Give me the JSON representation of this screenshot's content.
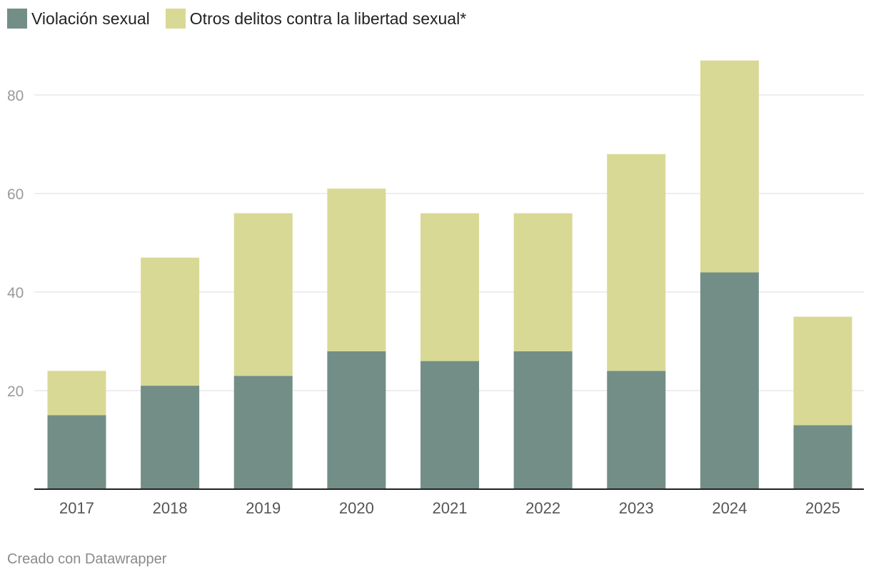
{
  "chart_data": {
    "type": "bar",
    "stacked": true,
    "categories": [
      "2017",
      "2018",
      "2019",
      "2020",
      "2021",
      "2022",
      "2023",
      "2024",
      "2025"
    ],
    "series": [
      {
        "name": "Violación sexual",
        "color": "#728e87",
        "values": [
          15,
          21,
          23,
          28,
          26,
          28,
          24,
          44,
          13
        ]
      },
      {
        "name": "Otros delitos contra la libertad sexual*",
        "color": "#d9d996",
        "values": [
          9,
          26,
          33,
          33,
          30,
          28,
          44,
          43,
          22
        ]
      }
    ],
    "ylim": [
      0,
      80
    ],
    "yticks": [
      "20",
      "40",
      "60",
      "80"
    ],
    "grid": true,
    "legend": "top-left",
    "title": "",
    "xlabel": "",
    "ylabel": ""
  },
  "footer": {
    "credit": "Creado con Datawrapper"
  }
}
